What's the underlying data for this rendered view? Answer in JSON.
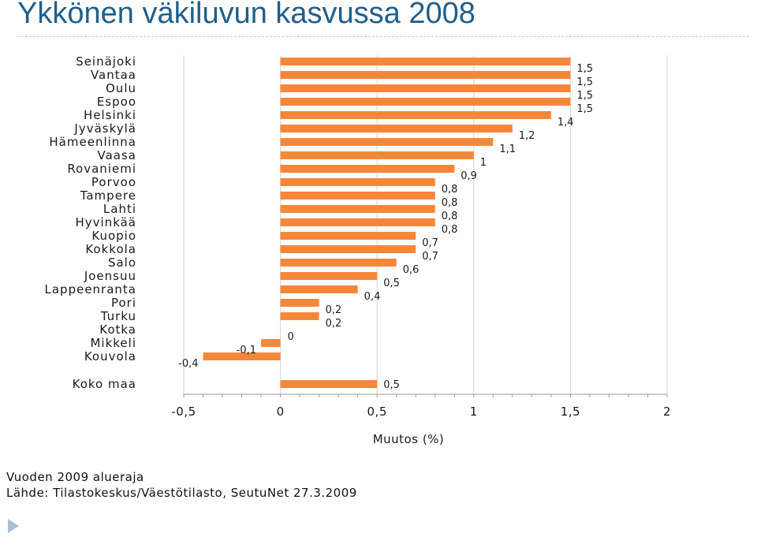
{
  "page": {
    "title": "Ykkönen väkiluvun kasvussa 2008",
    "footnote_1": "Vuoden 2009 alueraja",
    "footnote_2": "Lähde: Tilastokeskus/Väestötilasto, SeutuNet 27.3.2009",
    "corner_icon": "triangle-arrow-icon"
  },
  "colors": {
    "bar": "#f5873a",
    "title": "#1f5f8b"
  },
  "chart_data": {
    "type": "bar",
    "orientation": "horizontal",
    "title": "",
    "xlabel": "Muutos (%)",
    "ylabel": "",
    "xlim": [
      -0.5,
      2
    ],
    "x_ticks": [
      -0.5,
      0,
      0.5,
      1,
      1.5,
      2
    ],
    "x_tick_labels": [
      "-0,5",
      "0",
      "0,5",
      "1",
      "1,5",
      "2"
    ],
    "grid": true,
    "legend": "none",
    "categories": [
      "Seinäjoki",
      "Vantaa",
      "Oulu",
      "Espoo",
      "Helsinki",
      "Jyväskylä",
      "Hämeenlinna",
      "Vaasa",
      "Rovaniemi",
      "Porvoo",
      "Tampere",
      "Lahti",
      "Hyvinkää",
      "Kuopio",
      "Kokkola",
      "Salo",
      "Joensuu",
      "Lappeenranta",
      "Pori",
      "Turku",
      "Kotka",
      "Mikkeli",
      "Kouvola"
    ],
    "values": [
      1.5,
      1.5,
      1.5,
      1.5,
      1.4,
      1.2,
      1.1,
      1.0,
      0.9,
      0.8,
      0.8,
      0.8,
      0.8,
      0.7,
      0.7,
      0.6,
      0.5,
      0.4,
      0.2,
      0.2,
      0.0,
      -0.1,
      -0.4
    ],
    "value_labels": [
      "1,5",
      "1,5",
      "1,5",
      "1,5",
      "1,4",
      "1,2",
      "1,1",
      "1",
      "0,9",
      "0,8",
      "0,8",
      "0,8",
      "0,8",
      "0,7",
      "0,7",
      "0,6",
      "0,5",
      "0,4",
      "0,2",
      "0,2",
      "0",
      "-0,1",
      "-0,4"
    ],
    "total": {
      "category": "Koko maa",
      "value": 0.5,
      "label": "0,5"
    }
  }
}
